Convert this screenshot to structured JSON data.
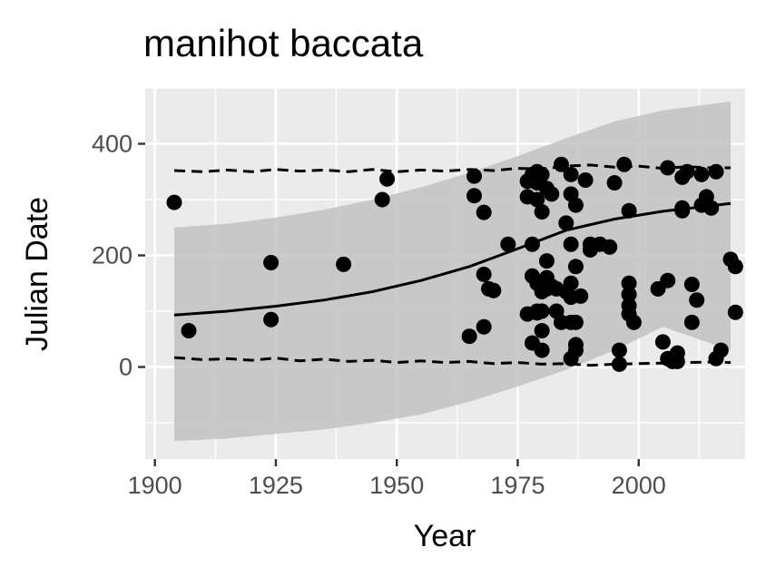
{
  "chart_data": {
    "type": "scatter",
    "title": "manihot baccata",
    "xlabel": "Year",
    "ylabel": "Julian Date",
    "xlim": [
      1898,
      2022
    ],
    "ylim": [
      -165,
      500
    ],
    "x_ticks": [
      1900,
      1925,
      1950,
      1975,
      2000
    ],
    "y_ticks": [
      0,
      200,
      400
    ],
    "grid": true,
    "legend": "none",
    "colors": {
      "panel": "#ebebeb",
      "grid": "#ffffff",
      "points": "#000000",
      "ribbon": "#c2c2c2",
      "line": "#000000"
    },
    "points": [
      {
        "x": 1904,
        "y": 295
      },
      {
        "x": 1907,
        "y": 65
      },
      {
        "x": 1924,
        "y": 187
      },
      {
        "x": 1924,
        "y": 85
      },
      {
        "x": 1939,
        "y": 184
      },
      {
        "x": 1947,
        "y": 300
      },
      {
        "x": 1948,
        "y": 337
      },
      {
        "x": 1965,
        "y": 55
      },
      {
        "x": 1966,
        "y": 342
      },
      {
        "x": 1966,
        "y": 307
      },
      {
        "x": 1968,
        "y": 277
      },
      {
        "x": 1968,
        "y": 166
      },
      {
        "x": 1968,
        "y": 72
      },
      {
        "x": 1969,
        "y": 140
      },
      {
        "x": 1970,
        "y": 137
      },
      {
        "x": 1973,
        "y": 220
      },
      {
        "x": 1977,
        "y": 333
      },
      {
        "x": 1977,
        "y": 305
      },
      {
        "x": 1977,
        "y": 95
      },
      {
        "x": 1978,
        "y": 345
      },
      {
        "x": 1978,
        "y": 220
      },
      {
        "x": 1978,
        "y": 163
      },
      {
        "x": 1978,
        "y": 43
      },
      {
        "x": 1979,
        "y": 350
      },
      {
        "x": 1979,
        "y": 330
      },
      {
        "x": 1979,
        "y": 300
      },
      {
        "x": 1979,
        "y": 150
      },
      {
        "x": 1979,
        "y": 100
      },
      {
        "x": 1979,
        "y": 97
      },
      {
        "x": 1980,
        "y": 345
      },
      {
        "x": 1980,
        "y": 278
      },
      {
        "x": 1980,
        "y": 135
      },
      {
        "x": 1980,
        "y": 100
      },
      {
        "x": 1980,
        "y": 65
      },
      {
        "x": 1980,
        "y": 30
      },
      {
        "x": 1981,
        "y": 320
      },
      {
        "x": 1981,
        "y": 190
      },
      {
        "x": 1981,
        "y": 160
      },
      {
        "x": 1981,
        "y": 140
      },
      {
        "x": 1982,
        "y": 310
      },
      {
        "x": 1982,
        "y": 145
      },
      {
        "x": 1983,
        "y": 100
      },
      {
        "x": 1983,
        "y": 140
      },
      {
        "x": 1984,
        "y": 363
      },
      {
        "x": 1984,
        "y": 80
      },
      {
        "x": 1985,
        "y": 258
      },
      {
        "x": 1985,
        "y": 135
      },
      {
        "x": 1986,
        "y": 345
      },
      {
        "x": 1986,
        "y": 310
      },
      {
        "x": 1986,
        "y": 220
      },
      {
        "x": 1986,
        "y": 150
      },
      {
        "x": 1986,
        "y": 125
      },
      {
        "x": 1986,
        "y": 80
      },
      {
        "x": 1986,
        "y": 15
      },
      {
        "x": 1987,
        "y": 290
      },
      {
        "x": 1987,
        "y": 180
      },
      {
        "x": 1987,
        "y": 80
      },
      {
        "x": 1987,
        "y": 40
      },
      {
        "x": 1987,
        "y": 30
      },
      {
        "x": 1988,
        "y": 127
      },
      {
        "x": 1989,
        "y": 335
      },
      {
        "x": 1990,
        "y": 210
      },
      {
        "x": 1990,
        "y": 220
      },
      {
        "x": 1992,
        "y": 220
      },
      {
        "x": 1994,
        "y": 215
      },
      {
        "x": 1995,
        "y": 330
      },
      {
        "x": 1996,
        "y": 30
      },
      {
        "x": 1996,
        "y": 5
      },
      {
        "x": 1997,
        "y": 363
      },
      {
        "x": 1998,
        "y": 280
      },
      {
        "x": 1998,
        "y": 150
      },
      {
        "x": 1998,
        "y": 130
      },
      {
        "x": 1998,
        "y": 110
      },
      {
        "x": 1998,
        "y": 95
      },
      {
        "x": 1999,
        "y": 80
      },
      {
        "x": 2004,
        "y": 140
      },
      {
        "x": 2005,
        "y": 45
      },
      {
        "x": 2006,
        "y": 357
      },
      {
        "x": 2006,
        "y": 155
      },
      {
        "x": 2006,
        "y": 15
      },
      {
        "x": 2007,
        "y": 10
      },
      {
        "x": 2008,
        "y": 25
      },
      {
        "x": 2008,
        "y": 10
      },
      {
        "x": 2009,
        "y": 340
      },
      {
        "x": 2009,
        "y": 285
      },
      {
        "x": 2009,
        "y": 280
      },
      {
        "x": 2010,
        "y": 350
      },
      {
        "x": 2011,
        "y": 148
      },
      {
        "x": 2011,
        "y": 80
      },
      {
        "x": 2012,
        "y": 120
      },
      {
        "x": 2013,
        "y": 345
      },
      {
        "x": 2013,
        "y": 290
      },
      {
        "x": 2014,
        "y": 305
      },
      {
        "x": 2015,
        "y": 285
      },
      {
        "x": 2016,
        "y": 350
      },
      {
        "x": 2016,
        "y": 15
      },
      {
        "x": 2017,
        "y": 30
      },
      {
        "x": 2019,
        "y": 193
      },
      {
        "x": 2020,
        "y": 180
      },
      {
        "x": 2020,
        "y": 98
      }
    ],
    "fit_line": {
      "x": [
        1904,
        1915,
        1925,
        1935,
        1945,
        1955,
        1965,
        1975,
        1985,
        1995,
        2005,
        2019
      ],
      "y": [
        93,
        100,
        109,
        120,
        135,
        155,
        180,
        212,
        245,
        265,
        279,
        293
      ]
    },
    "ribbon": {
      "x": [
        1904,
        1915,
        1925,
        1935,
        1945,
        1955,
        1965,
        1975,
        1985,
        1995,
        2005,
        2019
      ],
      "upper": [
        250,
        257,
        268,
        282,
        300,
        322,
        348,
        378,
        410,
        440,
        460,
        476
      ],
      "lower": [
        -133,
        -128,
        -120,
        -112,
        -100,
        -85,
        -62,
        -35,
        -5,
        30,
        72,
        30
      ]
    },
    "upper_bound": {
      "x": [
        1904,
        1910,
        1915,
        1920,
        1925,
        1930,
        1935,
        1940,
        1945,
        1950,
        1955,
        1960,
        1965,
        1970,
        1975,
        1980,
        1985,
        1990,
        1995,
        2000,
        2005,
        2010,
        2015,
        2019
      ],
      "y": [
        352,
        350,
        353,
        350,
        354,
        351,
        353,
        350,
        354,
        350,
        353,
        351,
        354,
        352,
        356,
        355,
        360,
        362,
        358,
        360,
        356,
        359,
        357,
        357
      ]
    },
    "lower_bound": {
      "x": [
        1904,
        1910,
        1915,
        1920,
        1925,
        1930,
        1935,
        1940,
        1945,
        1950,
        1955,
        1960,
        1965,
        1970,
        1975,
        1980,
        1985,
        1990,
        1995,
        2000,
        2005,
        2010,
        2015,
        2019
      ],
      "y": [
        17,
        13,
        15,
        12,
        16,
        11,
        14,
        10,
        12,
        8,
        11,
        8,
        10,
        6,
        8,
        5,
        6,
        3,
        5,
        6,
        7,
        8,
        9,
        8
      ]
    }
  }
}
